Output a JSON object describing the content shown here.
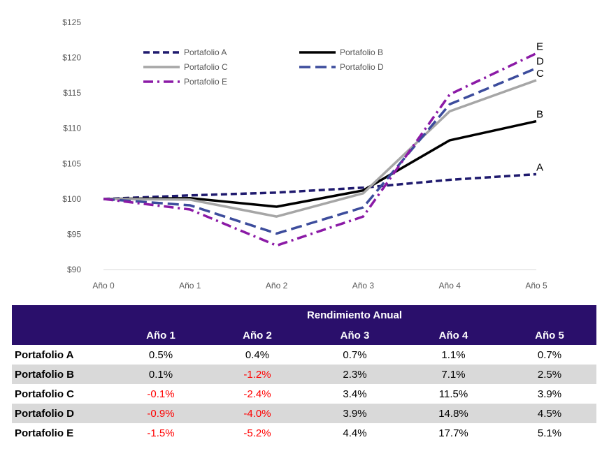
{
  "chart_data": {
    "type": "line",
    "categories": [
      "Año 0",
      "Año 1",
      "Año 2",
      "Año 3",
      "Año 4",
      "Año 5"
    ],
    "ylim": [
      90,
      125
    ],
    "yticks": [
      "$90",
      "$95",
      "$100",
      "$105",
      "$110",
      "$115",
      "$120",
      "$125"
    ],
    "y_tick_values": [
      90,
      95,
      100,
      105,
      110,
      115,
      120,
      125
    ],
    "grid": false,
    "legend_position": "top-left",
    "series": [
      {
        "name": "Portafolio A",
        "end_label": "A",
        "color": "#1f1a6e",
        "dash": "dash",
        "values": [
          100,
          100.5,
          100.9,
          101.6,
          102.7,
          103.5
        ]
      },
      {
        "name": "Portafolio B",
        "end_label": "B",
        "color": "#000000",
        "dash": "solid",
        "values": [
          100,
          100.1,
          98.9,
          101.2,
          108.3,
          111.0
        ]
      },
      {
        "name": "Portafolio C",
        "end_label": "C",
        "color": "#a6a6a6",
        "dash": "solid",
        "values": [
          100,
          99.9,
          97.5,
          100.8,
          112.4,
          116.8
        ]
      },
      {
        "name": "Portafolio D",
        "end_label": "D",
        "color": "#3c4c9c",
        "dash": "longdash",
        "values": [
          100,
          99.1,
          95.1,
          98.8,
          113.4,
          118.5
        ]
      },
      {
        "name": "Portafolio E",
        "end_label": "E",
        "color": "#8b1aa6",
        "dash": "dashdot",
        "values": [
          100,
          98.5,
          93.4,
          97.5,
          114.8,
          120.6
        ]
      }
    ]
  },
  "table": {
    "title": "Rendimiento Anual",
    "columns": [
      "Año 1",
      "Año 2",
      "Año 3",
      "Año 4",
      "Año 5"
    ],
    "rows": [
      {
        "label": "Portafolio A",
        "values": [
          "0.5%",
          "0.4%",
          "0.7%",
          "1.1%",
          "0.7%"
        ]
      },
      {
        "label": "Portafolio B",
        "values": [
          "0.1%",
          "-1.2%",
          "2.3%",
          "7.1%",
          "2.5%"
        ]
      },
      {
        "label": "Portafolio C",
        "values": [
          "-0.1%",
          "-2.4%",
          "3.4%",
          "11.5%",
          "3.9%"
        ]
      },
      {
        "label": "Portafolio D",
        "values": [
          "-0.9%",
          "-4.0%",
          "3.9%",
          "14.8%",
          "4.5%"
        ]
      },
      {
        "label": "Portafolio E",
        "values": [
          "-1.5%",
          "-5.2%",
          "4.4%",
          "17.7%",
          "5.1%"
        ]
      }
    ],
    "header_color": "#2a0f6b",
    "negative_color": "#ff0000",
    "shade_color": "#d9d9d9"
  }
}
